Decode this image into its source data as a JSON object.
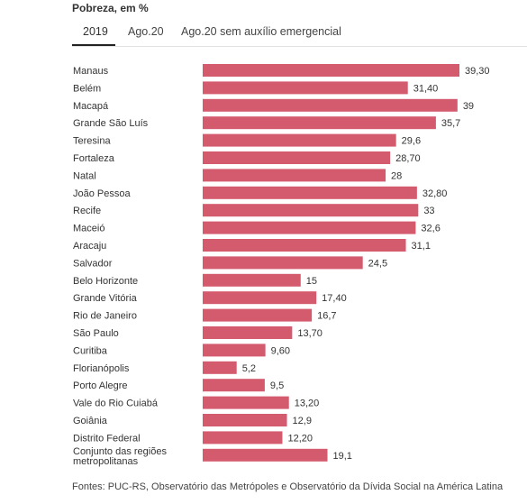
{
  "header": {
    "title": "Pobreza, em %"
  },
  "tabs": [
    {
      "label": "2019",
      "active": true
    },
    {
      "label": "Ago.20",
      "active": false
    },
    {
      "label": "Ago.20 sem auxílio emergencial",
      "active": false
    }
  ],
  "chart_data": {
    "type": "bar",
    "orientation": "horizontal",
    "categories": [
      [
        "Manaus"
      ],
      [
        "Belém"
      ],
      [
        "Macapá"
      ],
      [
        "Grande São Luís"
      ],
      [
        "Teresina"
      ],
      [
        "Fortaleza"
      ],
      [
        "Natal"
      ],
      [
        "João Pessoa"
      ],
      [
        "Recife"
      ],
      [
        "Maceió"
      ],
      [
        "Aracaju"
      ],
      [
        "Salvador"
      ],
      [
        "Belo Horizonte"
      ],
      [
        "Grande Vitória"
      ],
      [
        "Rio de Janeiro"
      ],
      [
        "São Paulo"
      ],
      [
        "Curitiba"
      ],
      [
        "Florianópolis"
      ],
      [
        "Porto Alegre"
      ],
      [
        "Vale do Rio Cuiabá"
      ],
      [
        "Goiânia"
      ],
      [
        "Distrito Federal"
      ],
      [
        "Conjunto das regiões",
        "metropolitanas"
      ]
    ],
    "values": [
      39.3,
      31.4,
      39,
      35.7,
      29.6,
      28.7,
      28,
      32.8,
      33,
      32.6,
      31.1,
      24.5,
      15,
      17.4,
      16.7,
      13.7,
      9.6,
      5.2,
      9.5,
      13.2,
      12.9,
      12.2,
      19.1
    ],
    "value_labels": [
      "39,30",
      "31,40",
      "39",
      "35,7",
      "29,6",
      "28,70",
      "28",
      "32,80",
      "33",
      "32,6",
      "31,1",
      "24,5",
      "15",
      "17,40",
      "16,7",
      "13,70",
      "9,60",
      "5,2",
      "9,5",
      "13,20",
      "12,9",
      "12,20",
      "19,1"
    ],
    "xlim": [
      0,
      39.3
    ],
    "bar_color": "#d45a6e"
  },
  "footer": {
    "source": "Fontes: PUC-RS, Observatório das Metrópoles e Observatório da Dívida Social na América Latina"
  }
}
